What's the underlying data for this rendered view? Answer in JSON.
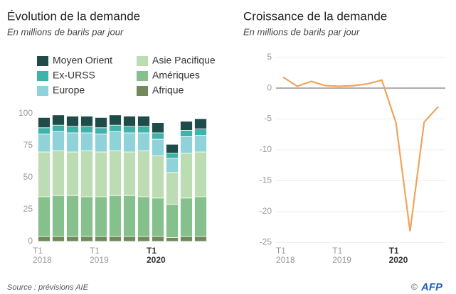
{
  "chart_data": [
    {
      "type": "stacked_bar",
      "title": "Évolution de la demande",
      "subtitle": "En millions de barils par jour",
      "categories": [
        "T1\n2018",
        null,
        null,
        null,
        "T1\n2019",
        null,
        null,
        null,
        "T1\n2020",
        null,
        null,
        null
      ],
      "series": [
        {
          "name": "Afrique",
          "color": "#6f8b5b",
          "values": [
            4,
            4,
            4,
            4,
            4,
            4,
            4,
            4,
            4,
            3,
            4,
            4
          ]
        },
        {
          "name": "Amériques",
          "color": "#86c08d",
          "values": [
            31,
            32,
            32,
            31,
            31,
            32,
            32,
            31,
            30,
            26,
            30,
            31
          ]
        },
        {
          "name": "Asie Pacifique",
          "color": "#bcddb3",
          "values": [
            35,
            35,
            34,
            36,
            35,
            35,
            34,
            36,
            33,
            25,
            35,
            35
          ]
        },
        {
          "name": "Europe",
          "color": "#90d2d9",
          "values": [
            14,
            15,
            15,
            14,
            14,
            15,
            15,
            14,
            13,
            11,
            13,
            13
          ]
        },
        {
          "name": "Ex-URSS",
          "color": "#3fb2a9",
          "values": [
            5,
            5,
            5,
            5,
            5,
            5,
            5,
            5,
            5,
            4,
            5,
            5
          ]
        },
        {
          "name": "Moyen Orient",
          "color": "#1f4c49",
          "values": [
            8,
            8,
            8,
            8,
            8,
            8,
            8,
            8,
            8,
            7,
            7,
            8
          ]
        }
      ],
      "ylim": [
        0,
        105
      ],
      "yticks": [
        0,
        25,
        50,
        75,
        100
      ]
    },
    {
      "type": "line",
      "title": "Croissance de la demande",
      "subtitle": "En millions de barils par jour",
      "categories": [
        "T1\n2018",
        null,
        null,
        null,
        "T1\n2019",
        null,
        null,
        null,
        "T1\n2020",
        null,
        null,
        null
      ],
      "color": "#f0a45c",
      "values": [
        1.8,
        0.3,
        1.1,
        0.4,
        0.3,
        0.4,
        0.7,
        1.3,
        -5.6,
        -23.2,
        -5.5,
        -3.0
      ],
      "ylim": [
        -26,
        6
      ],
      "yticks": [
        5,
        0,
        -5,
        -10,
        -15,
        -20,
        -25
      ],
      "grid": true
    }
  ],
  "source": "Source : prévisions AIE",
  "credit": "©",
  "logo": "AFP"
}
